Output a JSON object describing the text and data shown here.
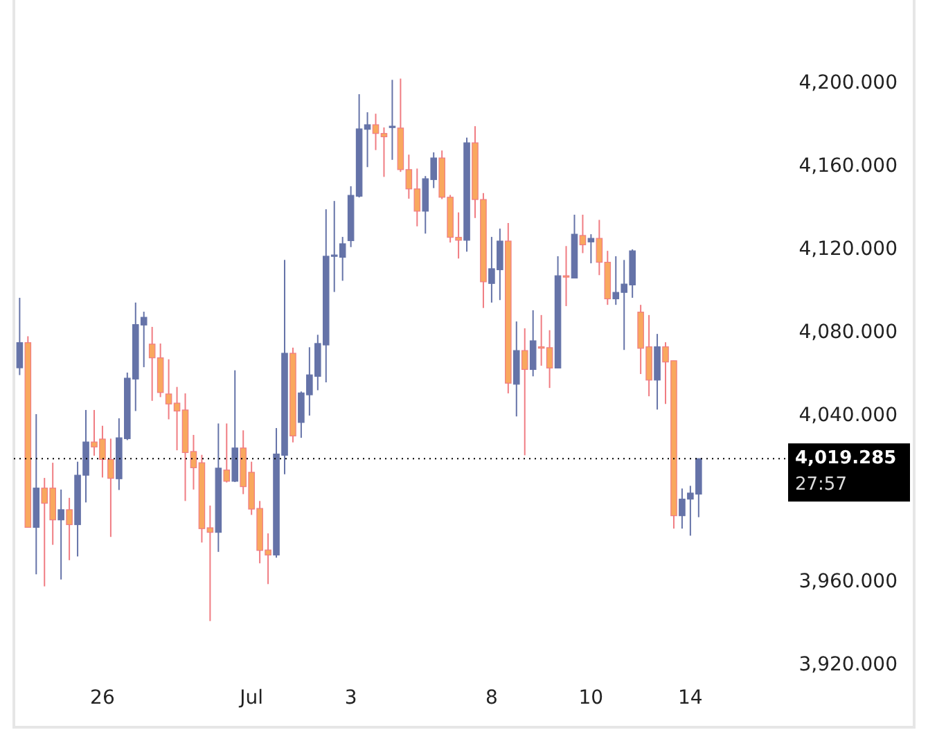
{
  "chart_data": {
    "type": "candlestick",
    "categories": [
      null,
      null,
      null,
      null,
      null,
      null,
      null,
      null,
      null,
      null,
      "26",
      null,
      null,
      null,
      null,
      null,
      null,
      null,
      null,
      null,
      null,
      null,
      null,
      null,
      null,
      null,
      null,
      null,
      "Jul",
      null,
      null,
      null,
      null,
      null,
      null,
      null,
      null,
      null,
      null,
      null,
      "3",
      null,
      null,
      null,
      null,
      null,
      null,
      null,
      null,
      null,
      null,
      null,
      null,
      null,
      null,
      null,
      null,
      "8",
      null,
      null,
      null,
      null,
      null,
      null,
      null,
      null,
      null,
      null,
      null,
      "10",
      null,
      null,
      null,
      null,
      null,
      null,
      null,
      null,
      null,
      null,
      null,
      "14",
      null
    ],
    "ohlc": [
      [
        4063,
        4096.7,
        4059.5,
        4075.1
      ],
      [
        4075.1,
        4078.2,
        3986,
        3986.2
      ],
      [
        3986.2,
        4040.7,
        3963.6,
        4005.1
      ],
      [
        4005.1,
        4010,
        3957.8,
        3997.8
      ],
      [
        4005.1,
        4017.3,
        3977.8,
        3989.8
      ],
      [
        3989.8,
        4004.4,
        3961.1,
        3994.7
      ],
      [
        3994.7,
        4000.4,
        3970.4,
        3987.5
      ],
      [
        3987.5,
        4017.8,
        3972.2,
        4011.3
      ],
      [
        4011.3,
        4042.7,
        3998.2,
        4027.3
      ],
      [
        4027.3,
        4042.7,
        4020.7,
        4024.9
      ],
      [
        4028.7,
        4035.1,
        4010.2,
        4018.9
      ],
      [
        4018.9,
        4028.9,
        3981.6,
        4009.8
      ],
      [
        4009.6,
        4038.7,
        4004.2,
        4029.3
      ],
      [
        4028.9,
        4060.7,
        4028.2,
        4058
      ],
      [
        4057.6,
        4094.4,
        4042.2,
        4083.8
      ],
      [
        4083.6,
        4090,
        4063.3,
        4087.3
      ],
      [
        4074.4,
        4082.7,
        4047.1,
        4067.8
      ],
      [
        4067.8,
        4074.7,
        4048.9,
        4051.1
      ],
      [
        4050.4,
        4067.1,
        4038.2,
        4045.6
      ],
      [
        4046,
        4053.8,
        4023.3,
        4042.2
      ],
      [
        4042.7,
        4050.7,
        3998.9,
        4022.2
      ],
      [
        4022.7,
        4030.7,
        4004.4,
        4014.9
      ],
      [
        4017.3,
        4021.1,
        3978.9,
        3985.6
      ],
      [
        3986,
        3996.7,
        3941.1,
        3983.8
      ],
      [
        3983.8,
        4036.2,
        3974.4,
        4014.7
      ],
      [
        4013.8,
        4036.2,
        4007.8,
        4008.4
      ],
      [
        4008.4,
        4061.8,
        4008,
        4024.4
      ],
      [
        4024.4,
        4032.9,
        4002.2,
        4005.8
      ],
      [
        4012.7,
        4017.8,
        3992.2,
        3995
      ],
      [
        3995.3,
        3998.9,
        3968.9,
        3975.1
      ],
      [
        3975.3,
        3983.3,
        3958.9,
        3972.9
      ],
      [
        3972.9,
        4034,
        3971.6,
        4021.5
      ],
      [
        4020.9,
        4114.9,
        4011.8,
        4070
      ],
      [
        4070,
        4072.7,
        4027.1,
        4030.2
      ],
      [
        4036.7,
        4051.6,
        4029.3,
        4050.9
      ],
      [
        4050,
        4072.9,
        4040,
        4059.6
      ],
      [
        4058.9,
        4078.9,
        4052.2,
        4074.7
      ],
      [
        4074,
        4139.3,
        4056,
        4116.7
      ],
      [
        4116.7,
        4143.3,
        4099.5,
        4117.3
      ],
      [
        4116.2,
        4126,
        4104.9,
        4122.7
      ],
      [
        4124.2,
        4150.4,
        4121.1,
        4146
      ],
      [
        4145.6,
        4194.7,
        4145,
        4178
      ],
      [
        4177.8,
        4186,
        4159.6,
        4180
      ],
      [
        4180,
        4185.3,
        4167.8,
        4175.8
      ],
      [
        4175.8,
        4178.7,
        4154.9,
        4174.2
      ],
      [
        4178.9,
        4201.6,
        4163.1,
        4179.3
      ],
      [
        4178.4,
        4202.2,
        4157.3,
        4158.4
      ],
      [
        4158.4,
        4165.6,
        4144.4,
        4149.1
      ],
      [
        4149.1,
        4158.9,
        4131.1,
        4138.4
      ],
      [
        4138.4,
        4155.3,
        4127.6,
        4154
      ],
      [
        4153.6,
        4166.7,
        4149.5,
        4164
      ],
      [
        4164,
        4167.6,
        4144.2,
        4145.1
      ],
      [
        4145.1,
        4146.2,
        4123.3,
        4125.8
      ],
      [
        4125.8,
        4137.8,
        4115.6,
        4124.4
      ],
      [
        4124.4,
        4173.8,
        4118.9,
        4171.3
      ],
      [
        4171.3,
        4179.3,
        4135.1,
        4144
      ],
      [
        4144,
        4147.1,
        4091.8,
        4104.4
      ],
      [
        4103.6,
        4126,
        4094.4,
        4110.7
      ],
      [
        4110.2,
        4130,
        4095.6,
        4124
      ],
      [
        4124,
        4132.7,
        4050.7,
        4055.6
      ],
      [
        4055.1,
        4085.3,
        4039.6,
        4071.3
      ],
      [
        4071.3,
        4082,
        4020.9,
        4062.2
      ],
      [
        4062.2,
        4090.7,
        4058.9,
        4076
      ],
      [
        4073.1,
        4088.4,
        4064,
        4072.7
      ],
      [
        4072.7,
        4081.1,
        4053.3,
        4062.9
      ],
      [
        4062.9,
        4116.7,
        4062.9,
        4107.3
      ],
      [
        4107.3,
        4121.6,
        4092.7,
        4106.7
      ],
      [
        4106.2,
        4136.7,
        4106.2,
        4127.3
      ],
      [
        4126.7,
        4136.7,
        4118.2,
        4122.2
      ],
      [
        4123.6,
        4127.3,
        4113.3,
        4125.3
      ],
      [
        4125.3,
        4134.2,
        4107.6,
        4113.8
      ],
      [
        4113.8,
        4119.3,
        4093.3,
        4096.2
      ],
      [
        4096.2,
        4116.7,
        4093.3,
        4099.3
      ],
      [
        4099.3,
        4114.9,
        4071.6,
        4103.3
      ],
      [
        4102.9,
        4120,
        4096.7,
        4119.3
      ],
      [
        4089.8,
        4093.3,
        4060,
        4072.4
      ],
      [
        4073.1,
        4088.4,
        4049.3,
        4057.1
      ],
      [
        4057.1,
        4079.3,
        4042.9,
        4073.1
      ],
      [
        4073.1,
        4075.3,
        4045.6,
        4065.8
      ],
      [
        4066.4,
        4066.4,
        3985.6,
        3991.8
      ],
      [
        3991.8,
        4004.9,
        3985.6,
        3999.8
      ],
      [
        3999.8,
        4006.2,
        3982.2,
        4002.7
      ],
      [
        4002.2,
        4019.285,
        3991.1,
        4019.285
      ]
    ],
    "colors": [
      "#6573a8",
      "#f9a85e",
      "#6573a8",
      "#f9a85e",
      "#f9a85e",
      "#6573a8",
      "#f9a85e",
      "#6573a8",
      "#6573a8",
      "#f9a85e",
      "#f9a85e",
      "#f9a85e",
      "#6573a8",
      "#6573a8",
      "#6573a8",
      "#6573a8",
      "#f9a85e",
      "#f9a85e",
      "#f9a85e",
      "#f9a85e",
      "#f9a85e",
      "#f9a85e",
      "#f9a85e",
      "#f9a85e",
      "#6573a8",
      "#f9a85e",
      "#6573a8",
      "#f9a85e",
      "#f9a85e",
      "#f9a85e",
      "#f9a85e",
      "#6573a8",
      "#6573a8",
      "#f9a85e",
      "#6573a8",
      "#6573a8",
      "#6573a8",
      "#6573a8",
      "#6573a8",
      "#6573a8",
      "#6573a8",
      "#6573a8",
      "#6573a8",
      "#f9a85e",
      "#f9a85e",
      "#6573a8",
      "#f9a85e",
      "#f9a85e",
      "#f9a85e",
      "#6573a8",
      "#6573a8",
      "#f9a85e",
      "#f9a85e",
      "#f9a85e",
      "#6573a8",
      "#f9a85e",
      "#f9a85e",
      "#6573a8",
      "#6573a8",
      "#f9a85e",
      "#6573a8",
      "#f9a85e",
      "#6573a8",
      "#f9a85e",
      "#f9a85e",
      "#6573a8",
      "#f9a85e",
      "#6573a8",
      "#f9a85e",
      "#6573a8",
      "#f9a85e",
      "#f9a85e",
      "#6573a8",
      "#6573a8",
      "#6573a8",
      "#f9a85e",
      "#f9a85e",
      "#6573a8",
      "#f9a85e",
      "#f9a85e",
      "#6573a8",
      "#6573a8",
      "#6573a8"
    ],
    "ylim": [
      3890,
      4236.7
    ],
    "yticks": [
      {
        "value": 3920,
        "label": "3,920.000"
      },
      {
        "value": 3960,
        "label": "3,960.000"
      },
      {
        "value": 4040,
        "label": "4,040.000"
      },
      {
        "value": 4080,
        "label": "4,080.000"
      },
      {
        "value": 4120,
        "label": "4,120.000"
      },
      {
        "value": 4160,
        "label": "4,160.000"
      },
      {
        "value": 4200,
        "label": "4,200.000"
      }
    ],
    "ref_lines": [
      {
        "axis": "y",
        "value": 4019.285,
        "label": "4,019.285",
        "color": "#000000",
        "line_style": "dotted"
      }
    ],
    "annotations": [
      "27:57"
    ]
  }
}
